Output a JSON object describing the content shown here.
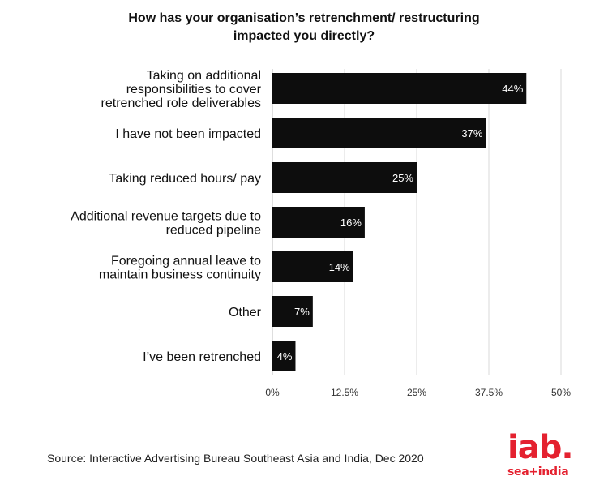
{
  "title_line1": "How has your organisation’s retrenchment/ restructuring",
  "title_line2": "impacted you directly?",
  "source": "Source: Interactive Advertising Bureau Southeast Asia and India, Dec 2020",
  "logo": {
    "mark": "iab.",
    "sub": "sea+india",
    "color": "#e4212f"
  },
  "chart_data": {
    "type": "bar",
    "orientation": "horizontal",
    "categories": [
      [
        "Taking on additional",
        "responsibilities to cover",
        "retrenched role deliverables"
      ],
      [
        "I have not been impacted"
      ],
      [
        "Taking reduced hours/ pay"
      ],
      [
        "Additional revenue targets due to",
        "reduced pipeline"
      ],
      [
        "Foregoing annual leave to",
        "maintain business continuity"
      ],
      [
        "Other"
      ],
      [
        "I’ve been retrenched"
      ]
    ],
    "values": [
      44,
      37,
      25,
      16,
      14,
      7,
      4
    ],
    "value_labels": [
      "44%",
      "37%",
      "25%",
      "16%",
      "14%",
      "7%",
      "4%"
    ],
    "xlim": [
      0,
      50
    ],
    "ticks": [
      0,
      12.5,
      25,
      37.5,
      50
    ],
    "tick_labels": [
      "0%",
      "12.5%",
      "25%",
      "37.5%",
      "50%"
    ],
    "grid": true,
    "bar_color": "#0d0d0d",
    "label_color": "#ffffff"
  }
}
